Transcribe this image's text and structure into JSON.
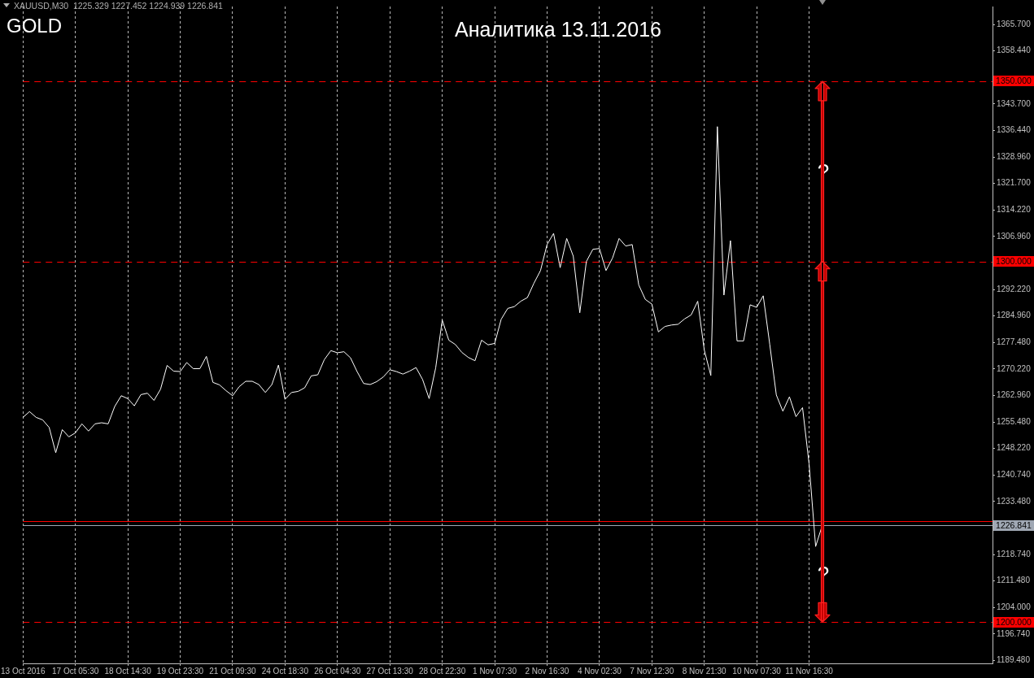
{
  "chart_data": {
    "type": "line",
    "title": "Аналитика 13.11.2016",
    "annotations": [
      "GOLD",
      "XAUUSD,M30  1225.329 1227.452 1224.939 1226.841",
      "?",
      {
        "text": "?",
        "y": 1200
      }
    ],
    "categories": [
      "13 Oct 2016",
      null,
      null,
      null,
      null,
      null,
      null,
      null,
      "17 Oct 05:30",
      null,
      null,
      null,
      null,
      null,
      null,
      null,
      "18 Oct 14:30",
      null,
      null,
      null,
      null,
      null,
      null,
      null,
      "19 Oct 23:30",
      null,
      null,
      null,
      null,
      null,
      null,
      null,
      "21 Oct 09:30",
      null,
      null,
      null,
      null,
      null,
      null,
      null,
      "24 Oct 18:30",
      null,
      null,
      null,
      null,
      null,
      null,
      null,
      "26 Oct 04:30",
      null,
      null,
      null,
      null,
      null,
      null,
      null,
      "27 Oct 13:30",
      null,
      null,
      null,
      null,
      null,
      null,
      null,
      "28 Oct 22:30",
      null,
      null,
      null,
      null,
      null,
      null,
      null,
      "1 Nov 07:30",
      null,
      null,
      null,
      null,
      null,
      null,
      null,
      "2 Nov 16:30",
      null,
      null,
      null,
      null,
      null,
      null,
      null,
      "4 Nov 02:30",
      null,
      null,
      null,
      null,
      null,
      null,
      null,
      "7 Nov 12:30",
      null,
      null,
      null,
      null,
      null,
      null,
      null,
      "8 Nov 21:30",
      null,
      null,
      null,
      null,
      null,
      null,
      null,
      "10 Nov 07:30",
      null,
      null,
      null,
      null,
      null,
      null,
      null,
      "11 Nov 16:30",
      null,
      null,
      null,
      null,
      null,
      null,
      null,
      null,
      null,
      null,
      null,
      null,
      null,
      null,
      null,
      null,
      null,
      null,
      null,
      null,
      null,
      null,
      null,
      null,
      null,
      null,
      null,
      null
    ],
    "series": [
      {
        "color": "#ffffff",
        "values": [
          1256.8,
          1258.4,
          1256.8,
          1256.1,
          1254.0,
          1247.0,
          1253.4,
          1251.4,
          1252.5,
          1255.0,
          1253.0,
          1255.0,
          1255.3,
          1255.0,
          1259.8,
          1262.8,
          1262.0,
          1260.0,
          1263.1,
          1263.5,
          1261.5,
          1264.6,
          1271.2,
          1269.6,
          1269.5,
          1272.0,
          1270.3,
          1270.3,
          1273.7,
          1266.5,
          1265.8,
          1264.2,
          1262.8,
          1265.3,
          1266.8,
          1266.8,
          1265.9,
          1263.7,
          1265.9,
          1271.3,
          1261.8,
          1263.7,
          1264.0,
          1265.0,
          1268.3,
          1268.6,
          1272.8,
          1275.3,
          1274.7,
          1275.0,
          1273.3,
          1269.5,
          1266.2,
          1265.9,
          1266.7,
          1268.0,
          1270.0,
          1269.5,
          1268.8,
          1269.6,
          1270.6,
          1267.3,
          1262.0,
          1270.5,
          1283.8,
          1278.2,
          1277.0,
          1274.8,
          1273.4,
          1272.5,
          1278.2,
          1276.9,
          1277.3,
          1284.0,
          1287.0,
          1287.5,
          1289.0,
          1290.0,
          1294.0,
          1297.5,
          1304.7,
          1307.8,
          1298.3,
          1306.4,
          1301.5,
          1285.8,
          1300.0,
          1303.4,
          1303.6,
          1297.5,
          1301.0,
          1306.4,
          1304.3,
          1304.7,
          1293.5,
          1289.5,
          1288.2,
          1280.5,
          1282.0,
          1282.4,
          1282.6,
          1284.1,
          1285.2,
          1289.0,
          1275.5,
          1268.4,
          1337.4,
          1290.7,
          1305.8,
          1278.0,
          1278.0,
          1288.0,
          1287.3,
          1290.5,
          1277.0,
          1263.0,
          1258.5,
          1262.5,
          1257.0,
          1259.5,
          1243.9,
          1221.0,
          1226.8,
          null,
          null,
          null,
          null,
          null,
          null,
          null,
          null,
          null,
          null,
          null,
          null,
          null,
          null,
          null,
          null,
          null,
          null,
          null,
          null,
          null,
          null,
          null,
          null,
          null,
          null
        ]
      }
    ],
    "ylim": [
      1188.6,
      1370.7
    ],
    "yticks": [
      {
        "value": 1189.48,
        "label": "1189.480"
      },
      {
        "value": 1196.74,
        "label": "1196.740"
      },
      {
        "value": 1204,
        "label": "1204.000"
      },
      {
        "value": 1211.48,
        "label": "1211.480"
      },
      {
        "value": 1218.74,
        "label": "1218.740"
      },
      {
        "value": 1233.48,
        "label": "1233.480"
      },
      {
        "value": 1240.74,
        "label": "1240.740"
      },
      {
        "value": 1248.22,
        "label": "1248.220"
      },
      {
        "value": 1255.48,
        "label": "1255.480"
      },
      {
        "value": 1262.96,
        "label": "1262.960"
      },
      {
        "value": 1270.22,
        "label": "1270.220"
      },
      {
        "value": 1277.48,
        "label": "1277.480"
      },
      {
        "value": 1284.96,
        "label": "1284.960"
      },
      {
        "value": 1292.22,
        "label": "1292.220"
      },
      {
        "value": 1306.96,
        "label": "1306.960"
      },
      {
        "value": 1314.22,
        "label": "1314.220"
      },
      {
        "value": 1321.7,
        "label": "1321.700"
      },
      {
        "value": 1328.96,
        "label": "1328.960"
      },
      {
        "value": 1336.44,
        "label": "1336.440"
      },
      {
        "value": 1343.7,
        "label": "1343.700"
      },
      {
        "value": 1358.44,
        "label": "1358.440"
      },
      {
        "value": 1365.7,
        "label": "1365.700"
      }
    ],
    "ref_lines": [
      {
        "axis": "y",
        "value": 1350,
        "label": "1350.000",
        "color": "#ff0000",
        "line_style": "dashed"
      },
      {
        "axis": "y",
        "value": 1300,
        "label": "1300.000",
        "color": "#ff0000",
        "line_style": "dashed"
      },
      {
        "axis": "y",
        "value": 1228,
        "color": "#ff0000",
        "line_style": "solid"
      },
      {
        "axis": "y",
        "value": 1226.841,
        "label": "1226.841",
        "color": "#a0a8b4",
        "line_style": "solid"
      },
      {
        "axis": "y",
        "value": 1200,
        "label": "1200.000",
        "color": "#ff0000",
        "line_style": "dashed"
      }
    ],
    "grid": "x"
  }
}
